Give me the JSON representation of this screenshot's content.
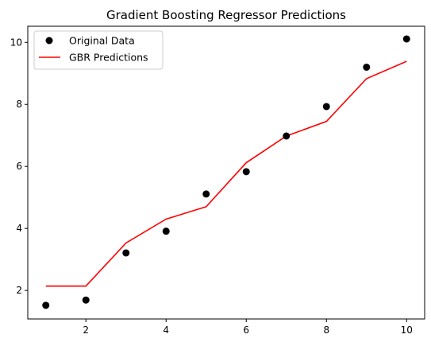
{
  "chart_data": {
    "type": "scatter",
    "title": "Gradient Boosting Regressor Predictions",
    "xlabel": "",
    "ylabel": "",
    "xlim": [
      0.55,
      10.45
    ],
    "ylim": [
      1.08,
      10.52
    ],
    "x_ticks": [
      2,
      4,
      6,
      8,
      10
    ],
    "y_ticks": [
      2,
      4,
      6,
      8,
      10
    ],
    "grid": false,
    "legend_position": "upper-left",
    "series": [
      {
        "name": "Original Data",
        "kind": "scatter",
        "color": "#000000",
        "x": [
          1,
          2,
          3,
          4,
          5,
          6,
          7,
          8,
          9,
          10
        ],
        "y": [
          1.52,
          1.69,
          3.21,
          3.91,
          5.11,
          5.83,
          6.98,
          7.93,
          9.2,
          10.11
        ]
      },
      {
        "name": "GBR Predictions",
        "kind": "line",
        "color": "#ff0000",
        "x": [
          1,
          2,
          3,
          4,
          5,
          6,
          7,
          8,
          9,
          10
        ],
        "y": [
          2.14,
          2.14,
          3.53,
          4.3,
          4.7,
          6.12,
          6.98,
          7.45,
          8.83,
          9.39
        ]
      }
    ]
  }
}
